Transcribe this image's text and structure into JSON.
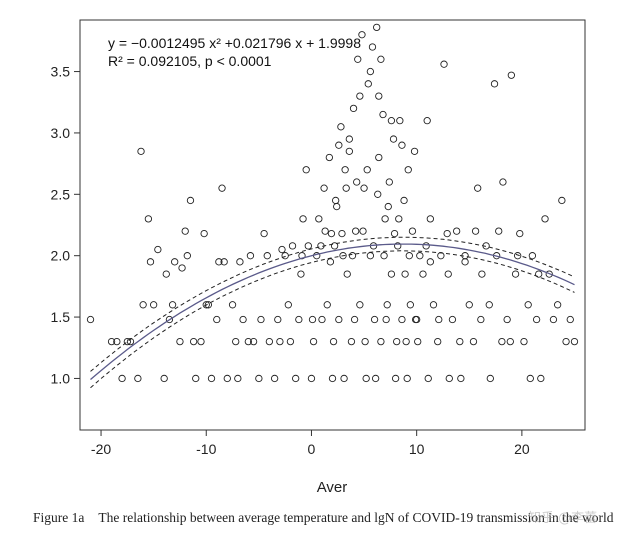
{
  "chart_data": {
    "type": "scatter",
    "xlabel": "Aver",
    "ylabel": "",
    "xlim": [
      -22,
      26
    ],
    "ylim": [
      0.58,
      3.92
    ],
    "xticks": [
      -20,
      -10,
      0,
      10,
      20
    ],
    "yticks": [
      1.0,
      1.5,
      2.0,
      2.5,
      3.0,
      3.5
    ],
    "xtick_labels": [
      "-20",
      "-10",
      "0",
      "10",
      "20"
    ],
    "ytick_labels": [
      "1.0",
      "1.5",
      "2.0",
      "2.5",
      "3.0",
      "3.5"
    ],
    "grid": false,
    "marker": "open-circle",
    "annotations": {
      "equation": "y = −0.0012495 x² +0.021796 x + 1.9998",
      "r_squared": "R² = 0.092105, p < 0.0001"
    },
    "fit": {
      "kind": "quadratic",
      "coefficients": {
        "a": -0.0012495,
        "b": 0.021796,
        "c": 1.9998
      },
      "x_range": [
        -21,
        25
      ],
      "color": "#5a5a8a",
      "ci_style": "dashed"
    },
    "points": [
      [
        -21,
        1.48
      ],
      [
        -19,
        1.3
      ],
      [
        -18.5,
        1.3
      ],
      [
        -18,
        1.0
      ],
      [
        -17.5,
        1.3
      ],
      [
        -16.5,
        1.0
      ],
      [
        -16,
        1.6
      ],
      [
        -16.2,
        2.85
      ],
      [
        -15.5,
        2.3
      ],
      [
        -15.3,
        1.95
      ],
      [
        -15,
        1.6
      ],
      [
        -14.6,
        2.05
      ],
      [
        -14,
        1.0
      ],
      [
        -13.5,
        1.48
      ],
      [
        -13.8,
        1.85
      ],
      [
        -13,
        1.95
      ],
      [
        -12.5,
        1.3
      ],
      [
        -12.3,
        1.9
      ],
      [
        -12,
        2.2
      ],
      [
        -11.8,
        2.0
      ],
      [
        -11.5,
        2.45
      ],
      [
        -11,
        1.0
      ],
      [
        -10.5,
        1.3
      ],
      [
        -10.2,
        2.18
      ],
      [
        -10,
        1.6
      ],
      [
        -9.5,
        1.0
      ],
      [
        -9,
        1.48
      ],
      [
        -8.8,
        1.95
      ],
      [
        -8.5,
        2.55
      ],
      [
        -8.3,
        1.95
      ],
      [
        -8,
        1.0
      ],
      [
        -7.5,
        1.6
      ],
      [
        -7.2,
        1.3
      ],
      [
        -7,
        1.0
      ],
      [
        -6.5,
        1.48
      ],
      [
        -6,
        1.3
      ],
      [
        -5.8,
        2.0
      ],
      [
        -5.5,
        1.3
      ],
      [
        -5,
        1.0
      ],
      [
        -4.8,
        1.48
      ],
      [
        -4.5,
        2.18
      ],
      [
        -4.2,
        2.0
      ],
      [
        -4,
        1.3
      ],
      [
        -3.5,
        1.0
      ],
      [
        -3.2,
        1.48
      ],
      [
        -3,
        1.3
      ],
      [
        -2.5,
        2.0
      ],
      [
        -2.2,
        1.6
      ],
      [
        -2,
        1.3
      ],
      [
        -1.8,
        2.08
      ],
      [
        -1.5,
        1.0
      ],
      [
        -1.2,
        1.48
      ],
      [
        -1,
        1.85
      ],
      [
        -0.8,
        2.3
      ],
      [
        -0.5,
        2.7
      ],
      [
        -0.3,
        2.08
      ],
      [
        0,
        1.0
      ],
      [
        0.2,
        1.3
      ],
      [
        0.5,
        2.0
      ],
      [
        0.7,
        2.3
      ],
      [
        1,
        1.48
      ],
      [
        1.2,
        2.55
      ],
      [
        1.5,
        1.6
      ],
      [
        1.7,
        2.8
      ],
      [
        2,
        1.0
      ],
      [
        2.2,
        2.08
      ],
      [
        2.4,
        2.4
      ],
      [
        2.6,
        1.48
      ],
      [
        2.8,
        3.05
      ],
      [
        3,
        2.0
      ],
      [
        3.2,
        2.7
      ],
      [
        3.4,
        1.85
      ],
      [
        3.6,
        2.95
      ],
      [
        3.8,
        1.3
      ],
      [
        4,
        3.2
      ],
      [
        4.2,
        2.2
      ],
      [
        4.4,
        3.6
      ],
      [
        4.6,
        1.6
      ],
      [
        4.8,
        3.8
      ],
      [
        5,
        2.55
      ],
      [
        5.2,
        1.0
      ],
      [
        5.4,
        3.4
      ],
      [
        5.6,
        2.0
      ],
      [
        5.8,
        3.7
      ],
      [
        6,
        1.48
      ],
      [
        6.2,
        3.86
      ],
      [
        6.4,
        2.8
      ],
      [
        6.6,
        1.3
      ],
      [
        6.8,
        3.15
      ],
      [
        7,
        2.3
      ],
      [
        7.2,
        1.6
      ],
      [
        7.4,
        2.6
      ],
      [
        7.6,
        1.85
      ],
      [
        7.8,
        2.95
      ],
      [
        8,
        1.0
      ],
      [
        8.2,
        2.08
      ],
      [
        8.4,
        3.1
      ],
      [
        8.6,
        1.48
      ],
      [
        8.8,
        2.45
      ],
      [
        9,
        1.3
      ],
      [
        9.2,
        2.7
      ],
      [
        9.4,
        1.6
      ],
      [
        9.6,
        2.2
      ],
      [
        9.8,
        2.85
      ],
      [
        10,
        1.48
      ],
      [
        10.3,
        2.0
      ],
      [
        10.6,
        1.85
      ],
      [
        11,
        3.1
      ],
      [
        11.3,
        2.3
      ],
      [
        11.6,
        1.6
      ],
      [
        12,
        1.3
      ],
      [
        12.3,
        2.0
      ],
      [
        12.6,
        3.56
      ],
      [
        13,
        1.85
      ],
      [
        13.4,
        1.48
      ],
      [
        13.8,
        2.2
      ],
      [
        14.2,
        1.0
      ],
      [
        14.6,
        2.0
      ],
      [
        15,
        1.6
      ],
      [
        15.4,
        1.3
      ],
      [
        15.8,
        2.55
      ],
      [
        16.2,
        1.85
      ],
      [
        16.6,
        2.08
      ],
      [
        17,
        1.0
      ],
      [
        17.4,
        3.4
      ],
      [
        17.8,
        2.2
      ],
      [
        18.2,
        2.6
      ],
      [
        18.6,
        1.48
      ],
      [
        19,
        3.47
      ],
      [
        19.4,
        1.85
      ],
      [
        19.8,
        2.18
      ],
      [
        20.2,
        1.3
      ],
      [
        20.6,
        1.6
      ],
      [
        21,
        2.0
      ],
      [
        21.4,
        1.48
      ],
      [
        21.8,
        1.0
      ],
      [
        22.2,
        2.3
      ],
      [
        22.6,
        1.85
      ],
      [
        23,
        1.48
      ],
      [
        23.4,
        1.6
      ],
      [
        23.8,
        2.45
      ],
      [
        24.2,
        1.3
      ],
      [
        24.6,
        1.48
      ],
      [
        25,
        1.3
      ],
      [
        -6.8,
        1.95
      ],
      [
        -2.8,
        2.05
      ],
      [
        1.8,
        1.95
      ],
      [
        3.1,
        1.0
      ],
      [
        6.1,
        1.0
      ],
      [
        8.1,
        1.3
      ],
      [
        9.1,
        1.0
      ],
      [
        10.1,
        1.3
      ],
      [
        12.1,
        1.48
      ],
      [
        13.1,
        1.0
      ],
      [
        16.1,
        1.48
      ],
      [
        18.1,
        1.3
      ],
      [
        0.1,
        1.48
      ],
      [
        2.1,
        1.3
      ],
      [
        4.1,
        1.48
      ],
      [
        5.1,
        1.3
      ],
      [
        7.1,
        1.48
      ],
      [
        9.9,
        1.48
      ],
      [
        11.1,
        1.0
      ],
      [
        14.1,
        1.3
      ],
      [
        6.9,
        2.0
      ],
      [
        7.9,
        2.18
      ],
      [
        5.9,
        2.08
      ],
      [
        4.9,
        2.2
      ],
      [
        3.9,
        2.0
      ],
      [
        8.9,
        1.85
      ],
      [
        10.9,
        2.08
      ],
      [
        12.9,
        2.18
      ],
      [
        1.9,
        2.18
      ],
      [
        0.9,
        2.08
      ],
      [
        -0.9,
        2.0
      ],
      [
        2.9,
        2.18
      ],
      [
        4.3,
        2.6
      ],
      [
        5.3,
        2.7
      ],
      [
        6.3,
        2.5
      ],
      [
        7.3,
        2.4
      ],
      [
        8.3,
        2.3
      ],
      [
        3.3,
        2.55
      ],
      [
        2.3,
        2.45
      ],
      [
        1.3,
        2.2
      ],
      [
        9.3,
        2.0
      ],
      [
        11.3,
        1.95
      ],
      [
        -9.8,
        1.6
      ],
      [
        -11.2,
        1.3
      ],
      [
        -13.2,
        1.6
      ],
      [
        -17.2,
        1.3
      ],
      [
        20.8,
        1.0
      ],
      [
        19.6,
        2.0
      ],
      [
        21.6,
        1.85
      ],
      [
        17.6,
        2.0
      ],
      [
        15.6,
        2.2
      ],
      [
        14.6,
        1.95
      ],
      [
        16.9,
        1.6
      ],
      [
        18.9,
        1.3
      ],
      [
        5.6,
        3.5
      ],
      [
        6.6,
        3.6
      ],
      [
        4.6,
        3.3
      ],
      [
        7.6,
        3.1
      ],
      [
        8.6,
        2.9
      ],
      [
        3.6,
        2.85
      ],
      [
        2.6,
        2.9
      ],
      [
        6.4,
        3.3
      ]
    ]
  },
  "caption": {
    "label": "Figure 1a",
    "text": "The relationship between average temperature and lgN of COVID-19 transmission in the world"
  },
  "watermark": "知乎 @李蕾"
}
